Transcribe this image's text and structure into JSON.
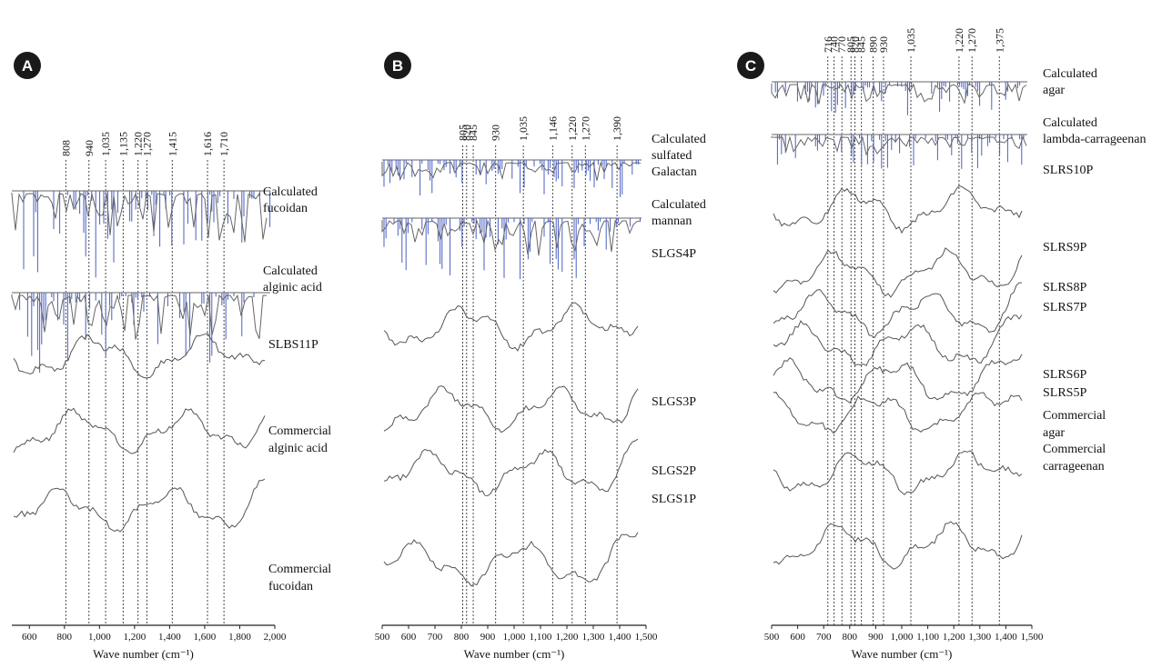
{
  "chart_data": [
    {
      "panel": "A",
      "type": "line",
      "xlabel": "Wave number (cm⁻¹)",
      "xlim": [
        500,
        2000
      ],
      "x_ticks": [
        "600",
        "800",
        "1,000",
        "1,200",
        "1,400",
        "1,600",
        "1,800",
        "2,000"
      ],
      "x_tick_values": [
        600,
        800,
        1000,
        1200,
        1400,
        1600,
        1800,
        2000
      ],
      "reference_lines": [
        "808",
        "940",
        "1,035",
        "1,135",
        "1,220",
        "1,270",
        "1,415",
        "1,616",
        "1,710"
      ],
      "reference_values": [
        808,
        940,
        1035,
        1135,
        1220,
        1270,
        1415,
        1616,
        1710
      ],
      "calculated_spectra": [
        {
          "label": [
            "Calculated",
            "fucoidan"
          ]
        },
        {
          "label": [
            "Calculated",
            "alginic acid"
          ]
        }
      ],
      "series": [
        {
          "name": "SLBS11P",
          "label": [
            "SLBS11P"
          ]
        },
        {
          "name": "Commercial alginic acid",
          "label": [
            "Commercial",
            "alginic acid"
          ]
        },
        {
          "name": "Commercial fucoidan",
          "label": [
            "Commercial",
            "fucoidan"
          ]
        }
      ]
    },
    {
      "panel": "B",
      "type": "line",
      "xlabel": "Wave number (cm⁻¹)",
      "xlim": [
        500,
        1500
      ],
      "x_ticks": [
        "500",
        "600",
        "700",
        "800",
        "900",
        "1,000",
        "1,100",
        "1,200",
        "1,300",
        "1,400",
        "1,500"
      ],
      "x_tick_values": [
        500,
        600,
        700,
        800,
        900,
        1000,
        1100,
        1200,
        1300,
        1400,
        1500
      ],
      "reference_lines": [
        "805",
        "820",
        "845",
        "930",
        "1,035",
        "1,146",
        "1,220",
        "1,270",
        "1,390"
      ],
      "reference_values": [
        805,
        820,
        845,
        930,
        1035,
        1146,
        1220,
        1270,
        1390
      ],
      "calculated_spectra": [
        {
          "label": [
            "Calculated",
            "sulfated",
            "Galactan"
          ]
        },
        {
          "label": [
            "Calculated",
            "mannan"
          ]
        }
      ],
      "series": [
        {
          "name": "SLGS4P",
          "label": [
            "SLGS4P"
          ]
        },
        {
          "name": "SLGS3P",
          "label": [
            "SLGS3P"
          ]
        },
        {
          "name": "SLGS2P",
          "label": [
            "SLGS2P"
          ]
        },
        {
          "name": "SLGS1P",
          "label": [
            "SLGS1P"
          ]
        }
      ]
    },
    {
      "panel": "C",
      "type": "line",
      "xlabel": "Wave number (cm⁻¹)",
      "xlim": [
        500,
        1500
      ],
      "x_ticks": [
        "500",
        "600",
        "700",
        "800",
        "900",
        "1,000",
        "1,100",
        "1,200",
        "1,300",
        "1,400",
        "1,500"
      ],
      "x_tick_values": [
        500,
        600,
        700,
        800,
        900,
        1000,
        1100,
        1200,
        1300,
        1400,
        1500
      ],
      "reference_lines": [
        "716",
        "740",
        "770",
        "805",
        "820",
        "845",
        "890",
        "930",
        "1,035",
        "1,220",
        "1,270",
        "1,375"
      ],
      "reference_values": [
        716,
        740,
        770,
        805,
        820,
        845,
        890,
        930,
        1035,
        1220,
        1270,
        1375
      ],
      "calculated_spectra": [
        {
          "label": [
            "Calculated",
            "agar"
          ]
        },
        {
          "label": [
            "Calculated",
            "lambda-carrageenan"
          ]
        }
      ],
      "series": [
        {
          "name": "SLRS10P",
          "label": [
            "SLRS10P"
          ]
        },
        {
          "name": "SLRS9P",
          "label": [
            "SLRS9P"
          ]
        },
        {
          "name": "SLRS8P",
          "label": [
            "SLRS8P"
          ]
        },
        {
          "name": "SLRS7P",
          "label": [
            "SLRS7P"
          ]
        },
        {
          "name": "SLRS6P",
          "label": [
            "SLRS6P"
          ]
        },
        {
          "name": "SLRS5P",
          "label": [
            "SLRS5P"
          ]
        },
        {
          "name": "Commercial agar",
          "label": [
            "Commercial",
            "agar"
          ]
        },
        {
          "name": "Commercial carrageenan",
          "label": [
            "Commercial",
            "carrageenan"
          ]
        }
      ]
    }
  ],
  "colors": {
    "badge": "#1a1a1a",
    "axis": "#222222",
    "dashed_line": "#333333",
    "spectrum": "#555555",
    "calculated_bars": "#4a5fc1"
  }
}
